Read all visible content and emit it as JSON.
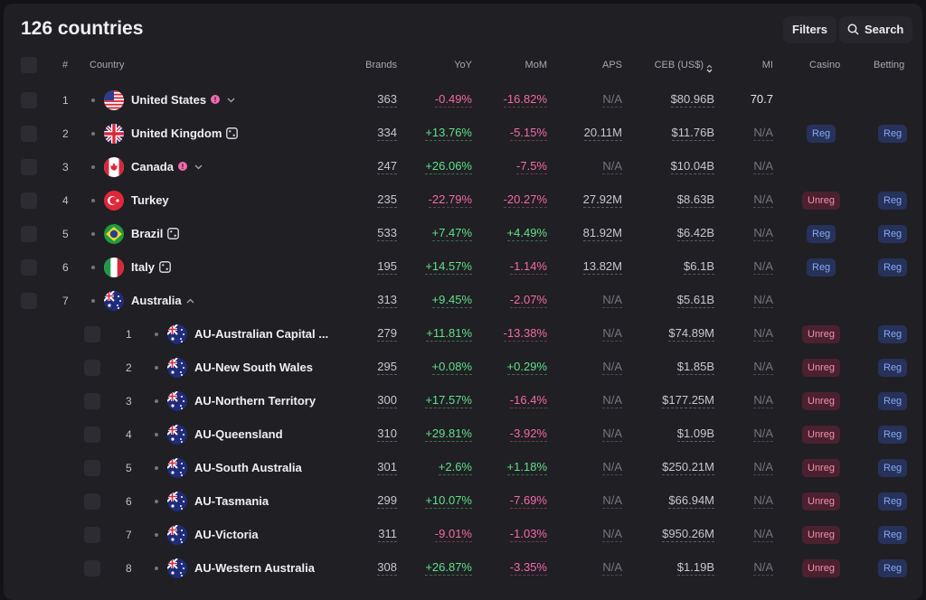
{
  "header": {
    "title": "126 countries",
    "filters": "Filters",
    "search": "Search"
  },
  "table": {
    "columns": [
      "#",
      "Country",
      "Brands",
      "YoY",
      "MoM",
      "APS",
      "CEB (US$)",
      "MI",
      "Casino",
      "Betting"
    ],
    "rows": [
      {
        "number": 1,
        "country": "United States",
        "brands": 363,
        "yoy": "-0.49%",
        "mom": "-16.82%",
        "aps": "N/A",
        "ceb": "$80.96B",
        "mi": 70.7
      },
      {
        "number": 2,
        "country": "United Kingdom",
        "brands": 334,
        "yoy": "+13.76%",
        "mom": "-5.15%",
        "aps": "20.11M",
        "ceb": "$11.76B",
        "mi": "N/A",
        "casino": "Reg",
        "betting": "Reg"
      },
      {
        "number": 3,
        "country": "Canada",
        "brands": 247,
        "yoy": "+26.06%",
        "mom": "-7.5%",
        "aps": "N/A",
        "ceb": "$10.04B",
        "mi": "N/A"
      },
      {
        "number": 4,
        "country": "Turkey",
        "brands": 235,
        "yoy": "-22.79%",
        "mom": "-20.27%",
        "aps": "27.92M",
        "ceb": "$8.63B",
        "mi": "N/A",
        "casino": "Unreg",
        "betting": "Reg"
      },
      {
        "number": 5,
        "country": "Brazil",
        "brands": 533,
        "yoy": "+7.47%",
        "mom": "+4.49%",
        "aps": "81.92M",
        "ceb": "$6.42B",
        "mi": "N/A",
        "casino": "Reg",
        "betting": "Reg"
      },
      {
        "number": 6,
        "country": "Italy",
        "brands": 195,
        "yoy": "+14.57%",
        "mom": "-1.14%",
        "aps": "13.82M",
        "ceb": "$6.1B",
        "mi": "N/A",
        "casino": "Reg",
        "betting": "Reg"
      },
      {
        "number": 7,
        "country": "Australia",
        "brands": 313,
        "yoy": "+9.45%",
        "mom": "-2.07%",
        "aps": "N/A",
        "ceb": "$5.61B",
        "mi": "N/A",
        "children": [
          {
            "number": 1,
            "country": "AU-Australian Capital ...",
            "brands": 279,
            "yoy": "+11.81%",
            "mom": "-13.38%",
            "aps": "N/A",
            "ceb": "$74.89M",
            "mi": "N/A",
            "casino": "Unreg",
            "betting": "Reg"
          },
          {
            "number": 2,
            "country": "AU-New South Wales",
            "brands": 295,
            "yoy": "+0.08%",
            "mom": "+0.29%",
            "aps": "N/A",
            "ceb": "$1.85B",
            "mi": "N/A",
            "casino": "Unreg",
            "betting": "Reg"
          },
          {
            "number": 3,
            "country": "AU-Northern Territory",
            "brands": 300,
            "yoy": "+17.57%",
            "mom": "-16.4%",
            "aps": "N/A",
            "ceb": "$177.25M",
            "mi": "N/A",
            "casino": "Unreg",
            "betting": "Reg"
          },
          {
            "number": 4,
            "country": "AU-Queensland",
            "brands": 310,
            "yoy": "+29.81%",
            "mom": "-3.92%",
            "aps": "N/A",
            "ceb": "$1.09B",
            "mi": "N/A",
            "casino": "Unreg",
            "betting": "Reg"
          },
          {
            "number": 5,
            "country": "AU-South Australia",
            "brands": 301,
            "yoy": "+2.6%",
            "mom": "+1.18%",
            "aps": "N/A",
            "ceb": "$250.21M",
            "mi": "N/A",
            "casino": "Unreg",
            "betting": "Reg"
          },
          {
            "number": 6,
            "country": "AU-Tasmania",
            "brands": 299,
            "yoy": "+10.07%",
            "mom": "-7.69%",
            "aps": "N/A",
            "ceb": "$66.94M",
            "mi": "N/A",
            "casino": "Unreg",
            "betting": "Reg"
          },
          {
            "number": 7,
            "country": "AU-Victoria",
            "brands": 311,
            "yoy": "-9.01%",
            "mom": "-1.03%",
            "aps": "N/A",
            "ceb": "$950.26M",
            "mi": "N/A",
            "casino": "Unreg",
            "betting": "Reg"
          },
          {
            "number": 8,
            "country": "AU-Western Australia",
            "brands": 308,
            "yoy": "+26.87%",
            "mom": "-3.35%",
            "aps": "N/A",
            "ceb": "$1.19B",
            "mi": "N/A",
            "casino": "Unreg",
            "betting": "Reg"
          }
        ]
      }
    ]
  }
}
